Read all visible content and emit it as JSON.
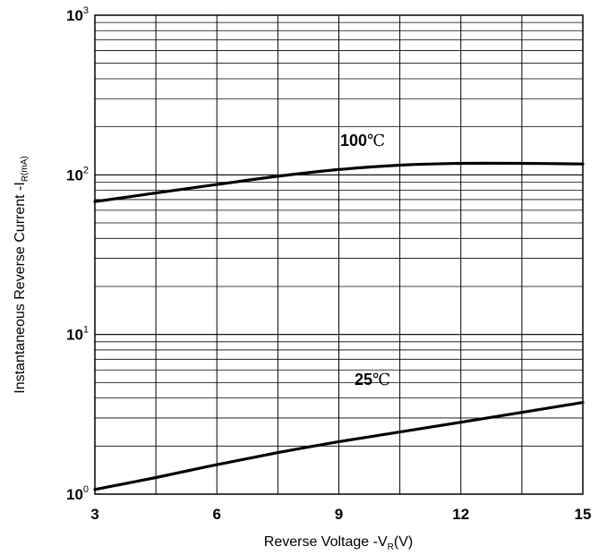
{
  "chart_data": {
    "type": "line",
    "xlabel": "Reverse  Voltage -V",
    "xlabel_sub": "R",
    "xlabel_tail": "(V)",
    "ylabel": "Instantaneous Reverse Current -I",
    "ylabel_sub": "R",
    "ylabel_tail": "(mA)",
    "x_ticks": [
      3,
      6,
      9,
      12,
      15
    ],
    "x_tick_labels": [
      "3",
      "6",
      "9",
      "12",
      "15"
    ],
    "xlim": [
      3,
      15
    ],
    "y_scale": "log",
    "ylim": [
      1,
      1000
    ],
    "y_ticks": [
      {
        "base": "10",
        "exp": "0"
      },
      {
        "base": "10",
        "exp": "1"
      },
      {
        "base": "10",
        "exp": "2"
      },
      {
        "base": "10",
        "exp": "3"
      }
    ],
    "grid": true,
    "series": [
      {
        "name": "100℃",
        "label_num": "100",
        "label_unit": "℃",
        "x": [
          3,
          4.5,
          6,
          7.5,
          9,
          10.5,
          12,
          13.5,
          15
        ],
        "y": [
          68,
          77,
          87,
          98,
          108,
          115,
          118,
          118,
          117
        ]
      },
      {
        "name": "25℃",
        "label_num": "25",
        "label_unit": "℃",
        "x": [
          3,
          4.5,
          6,
          7.5,
          9,
          10.5,
          12,
          13.5,
          15
        ],
        "y": [
          1.07,
          1.27,
          1.53,
          1.82,
          2.13,
          2.45,
          2.82,
          3.25,
          3.75
        ]
      }
    ]
  }
}
